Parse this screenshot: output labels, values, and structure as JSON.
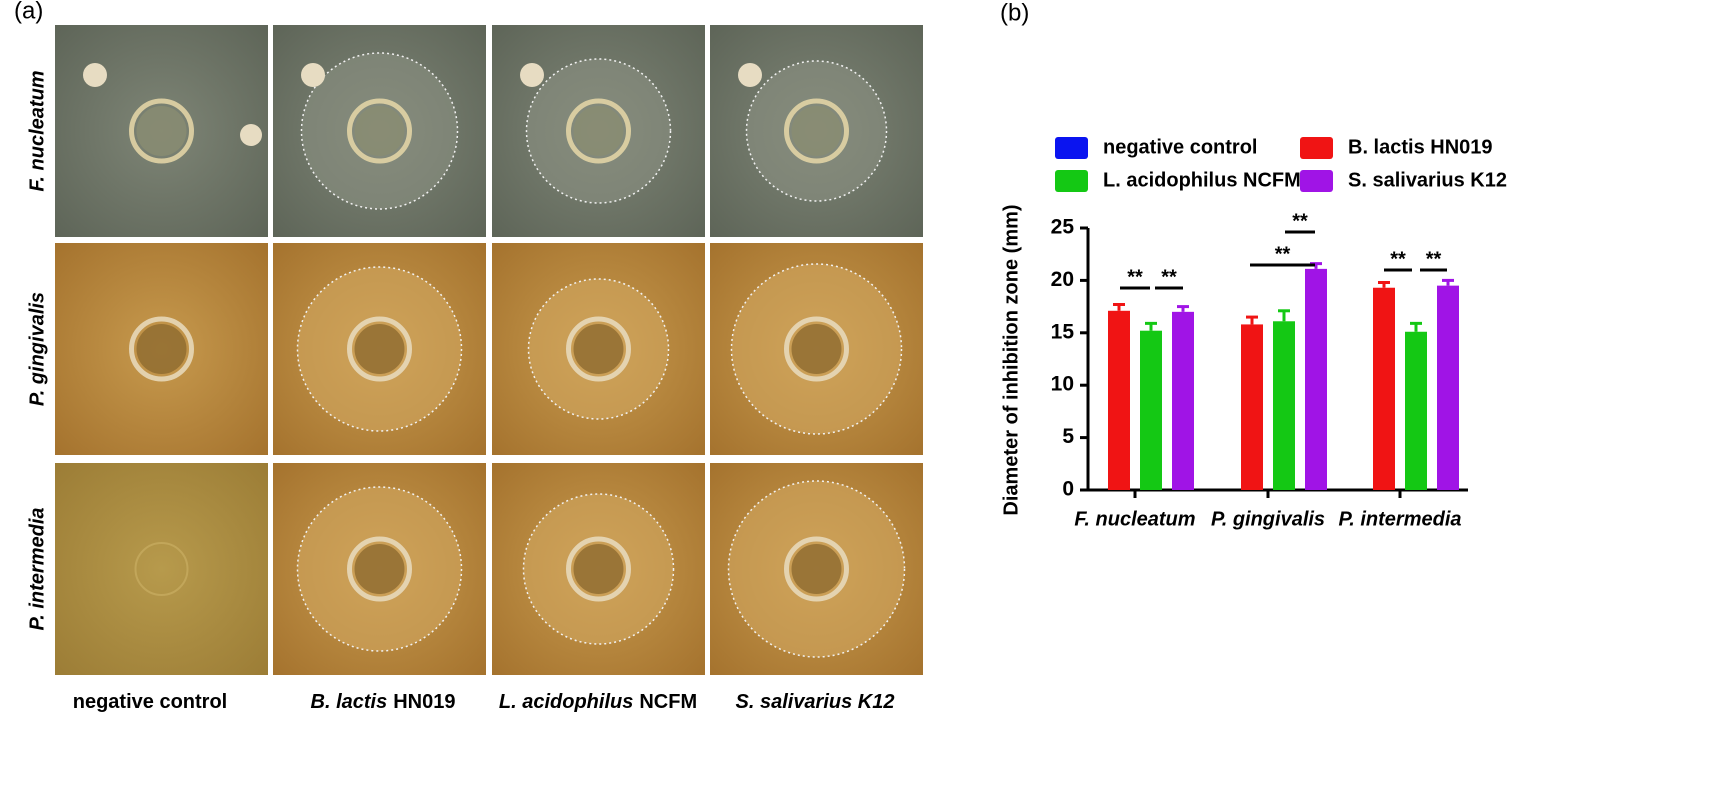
{
  "panel_a": {
    "label": "(a)",
    "rows": [
      "F. nucleatum",
      "P. gingivalis",
      "P. intermedia"
    ],
    "columns": [
      {
        "plain": "negative control"
      },
      {
        "italic": "B. lactis",
        "plain": "HN019"
      },
      {
        "italic": "L. acidophilus",
        "plain": "NCFM"
      },
      {
        "italic": "S. salivarius K12"
      }
    ]
  },
  "chart_data": {
    "type": "bar",
    "panel_label": "(b)",
    "y_label": "Diameter of inhibition zone (mm)",
    "categories": [
      "F. nucleatum",
      "P. gingivalis",
      "P. intermedia"
    ],
    "series": [
      {
        "name": "negative control",
        "color": "#0a14f0",
        "values": [
          0,
          0,
          0
        ]
      },
      {
        "name": "B. lactis HN019",
        "color": "#f01414",
        "values": [
          17.1,
          15.8,
          19.3
        ],
        "errors": [
          0.6,
          0.7,
          0.5
        ]
      },
      {
        "name": "L. acidophilus NCFM",
        "color": "#14c814",
        "values": [
          15.2,
          16.1,
          15.1
        ],
        "errors": [
          0.7,
          1.0,
          0.8
        ]
      },
      {
        "name": "S. salivarius K12",
        "color": "#a014e6",
        "values": [
          17.0,
          21.1,
          19.5
        ],
        "errors": [
          0.5,
          0.5,
          0.5
        ]
      }
    ],
    "ylim": [
      0,
      25
    ],
    "yticks": [
      0,
      5,
      10,
      15,
      20,
      25
    ],
    "annotations": [
      "**",
      "**",
      "**",
      "**",
      "**",
      "**"
    ]
  }
}
